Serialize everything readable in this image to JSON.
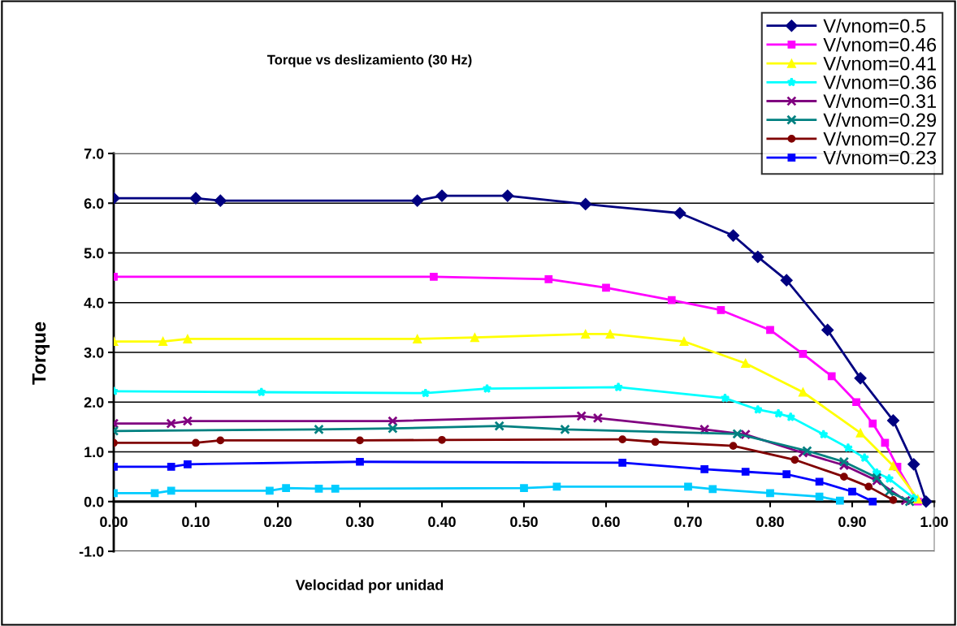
{
  "chart_data": {
    "type": "line",
    "title": "Torque vs deslizamiento (30 Hz)",
    "xlabel": "Velocidad por unidad",
    "ylabel": "Torque",
    "xlim": [
      0,
      1
    ],
    "ylim": [
      -1,
      7
    ],
    "xticks": [
      {
        "value": 0,
        "label": "0.00"
      },
      {
        "value": 0.1,
        "label": "0.10"
      },
      {
        "value": 0.2,
        "label": "0.20"
      },
      {
        "value": 0.3,
        "label": "0.30"
      },
      {
        "value": 0.4,
        "label": "0.40"
      },
      {
        "value": 0.5,
        "label": "0.50"
      },
      {
        "value": 0.6,
        "label": "0.60"
      },
      {
        "value": 0.7,
        "label": "0.70"
      },
      {
        "value": 0.8,
        "label": "0.80"
      },
      {
        "value": 0.9,
        "label": "0.90"
      },
      {
        "value": 1,
        "label": "1.00"
      }
    ],
    "yticks": [
      {
        "value": -1,
        "label": "-1.0"
      },
      {
        "value": 0,
        "label": "0.0"
      },
      {
        "value": 1,
        "label": "1.0"
      },
      {
        "value": 2,
        "label": "2.0"
      },
      {
        "value": 3,
        "label": "3.0"
      },
      {
        "value": 4,
        "label": "4.0"
      },
      {
        "value": 5,
        "label": "5.0"
      },
      {
        "value": 6,
        "label": "6.0"
      },
      {
        "value": 7,
        "label": "7.0"
      }
    ],
    "grid": "y",
    "legend": "top right",
    "line_style": "solid",
    "series": [
      {
        "name": "V/vnom=0.5",
        "color": "#000080",
        "marker": "diamond",
        "x": [
          0,
          0.1,
          0.13,
          0.37,
          0.4,
          0.48,
          0.575,
          0.69,
          0.755,
          0.785,
          0.82,
          0.87,
          0.91,
          0.95,
          0.975,
          0.99
        ],
        "values": [
          6.1,
          6.1,
          6.05,
          6.05,
          6.15,
          6.15,
          5.98,
          5.8,
          5.35,
          4.92,
          4.45,
          3.45,
          2.48,
          1.63,
          0.75,
          0
        ]
      },
      {
        "name": "V/vnom=0.46",
        "color": "#ff00ff",
        "marker": "square",
        "x": [
          0,
          0.39,
          0.53,
          0.6,
          0.68,
          0.74,
          0.8,
          0.84,
          0.875,
          0.905,
          0.925,
          0.94,
          0.955,
          0.98
        ],
        "values": [
          4.52,
          4.52,
          4.47,
          4.3,
          4.05,
          3.85,
          3.45,
          2.97,
          2.52,
          2.0,
          1.57,
          1.18,
          0.7,
          0
        ]
      },
      {
        "name": "V/vnom=0.41",
        "color": "#ffff00",
        "marker": "triangle",
        "x": [
          0,
          0.06,
          0.09,
          0.37,
          0.44,
          0.575,
          0.605,
          0.695,
          0.77,
          0.84,
          0.91,
          0.95,
          0.98
        ],
        "values": [
          3.22,
          3.22,
          3.27,
          3.27,
          3.3,
          3.37,
          3.37,
          3.22,
          2.78,
          2.2,
          1.38,
          0.72,
          0.05
        ]
      },
      {
        "name": "V/vnom=0.36",
        "color": "#00ffff",
        "marker": "star",
        "x": [
          0,
          0.18,
          0.38,
          0.455,
          0.615,
          0.745,
          0.785,
          0.81,
          0.825,
          0.865,
          0.895,
          0.915,
          0.93,
          0.945,
          0.975
        ],
        "values": [
          2.22,
          2.2,
          2.18,
          2.27,
          2.3,
          2.08,
          1.85,
          1.77,
          1.7,
          1.35,
          1.08,
          0.88,
          0.58,
          0.46,
          0.07
        ]
      },
      {
        "name": "V/vnom=0.31",
        "color": "#800080",
        "marker": "cross",
        "x": [
          0,
          0.07,
          0.09,
          0.34,
          0.57,
          0.59,
          0.72,
          0.77,
          0.84,
          0.89,
          0.93,
          0.965
        ],
        "values": [
          1.57,
          1.57,
          1.62,
          1.62,
          1.72,
          1.68,
          1.45,
          1.35,
          0.98,
          0.73,
          0.42,
          0.02
        ]
      },
      {
        "name": "V/vnom=0.29",
        "color": "#008080",
        "marker": "cross",
        "x": [
          0,
          0.25,
          0.34,
          0.47,
          0.55,
          0.76,
          0.845,
          0.89,
          0.93,
          0.945,
          0.97
        ],
        "values": [
          1.42,
          1.45,
          1.47,
          1.52,
          1.45,
          1.36,
          1.02,
          0.8,
          0.48,
          0.2,
          0
        ]
      },
      {
        "name": "V/vnom=0.27",
        "color": "#800000",
        "marker": "circle",
        "x": [
          0,
          0.1,
          0.13,
          0.3,
          0.4,
          0.62,
          0.66,
          0.755,
          0.83,
          0.89,
          0.92,
          0.95
        ],
        "values": [
          1.18,
          1.18,
          1.23,
          1.23,
          1.24,
          1.25,
          1.2,
          1.12,
          0.84,
          0.5,
          0.3,
          0.03
        ]
      },
      {
        "name": "V/vnom=0.23",
        "color": "#0000ff",
        "marker": "square",
        "x": [
          0,
          0.07,
          0.09,
          0.3,
          0.62,
          0.72,
          0.77,
          0.82,
          0.86,
          0.9,
          0.925
        ],
        "values": [
          0.7,
          0.7,
          0.75,
          0.8,
          0.78,
          0.65,
          0.6,
          0.55,
          0.4,
          0.2,
          0
        ]
      },
      {
        "color": "#00ccff",
        "marker": "square",
        "x": [
          0,
          0.05,
          0.07,
          0.19,
          0.21,
          0.25,
          0.27,
          0.5,
          0.54,
          0.7,
          0.73,
          0.8,
          0.86,
          0.885
        ],
        "values": [
          0.17,
          0.17,
          0.22,
          0.22,
          0.27,
          0.26,
          0.26,
          0.27,
          0.3,
          0.3,
          0.25,
          0.17,
          0.1,
          0.02
        ]
      }
    ]
  }
}
